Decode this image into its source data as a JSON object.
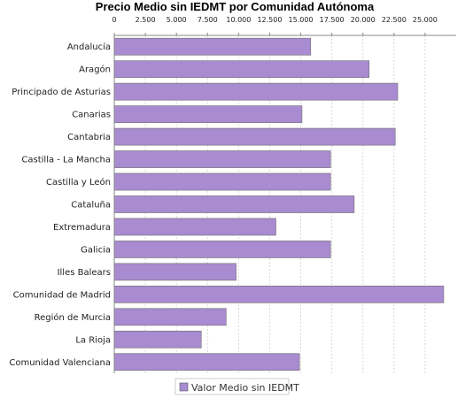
{
  "chart_data": {
    "type": "bar",
    "orientation": "horizontal",
    "title": "Precio Medio sin IEDMT por Comunidad Autónoma",
    "xlim": [
      0,
      27500
    ],
    "tick_values": [
      0,
      2500,
      5000,
      7500,
      10000,
      12500,
      15000,
      17500,
      20000,
      22500,
      25000
    ],
    "tick_labels": [
      "0",
      "2.500",
      "5.000",
      "7.500",
      "10.000",
      "12.500",
      "15.000",
      "17.500",
      "20.000",
      "22.500",
      "25.000"
    ],
    "x_axis_position": "top",
    "grid": "vertical dashed",
    "legend_placement": "bottom",
    "categories": [
      "Andalucía",
      "Aragón",
      "Principado de Asturias",
      "Canarias",
      "Cantabria",
      "Castilla - La Mancha",
      "Castilla y León",
      "Cataluña",
      "Extremadura",
      "Galicia",
      "Illes Balears",
      "Comunidad de Madrid",
      "Región de Murcia",
      "La Rioja",
      "Comunidad Valenciana"
    ],
    "series": [
      {
        "name": "Valor Medio sin IEDMT",
        "color": "#a88bd0",
        "values": [
          15800,
          20500,
          22800,
          15100,
          22600,
          17400,
          17400,
          19300,
          13000,
          17400,
          9800,
          26500,
          9000,
          7000,
          14900
        ]
      }
    ]
  }
}
